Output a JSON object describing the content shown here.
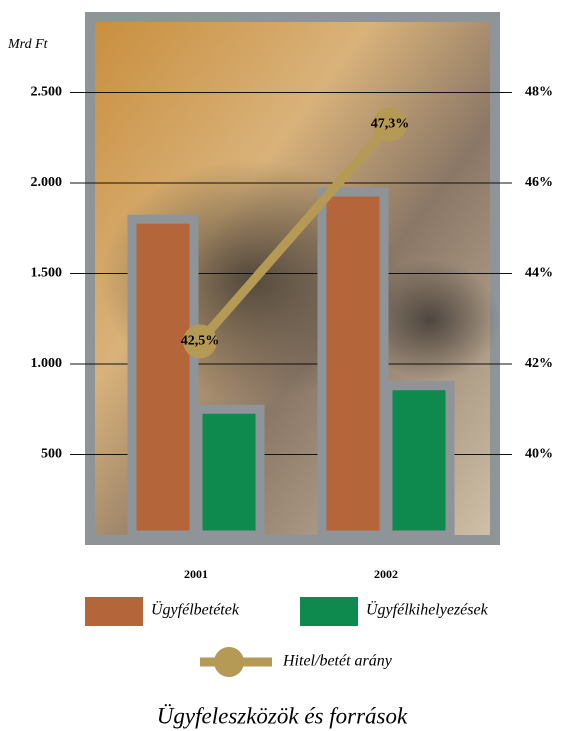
{
  "chart_data": {
    "type": "bar",
    "title": "Ügyfeleszközök és források",
    "y_label": "Mrd Ft",
    "categories": [
      "2001",
      "2002"
    ],
    "series": [
      {
        "name": "Ügyfélbetétek",
        "color": "#b5653a",
        "type": "bar",
        "values": [
          1800,
          1950
        ]
      },
      {
        "name": "Ügyfélkihelyezések",
        "color": "#0e8a4e",
        "type": "bar",
        "values": [
          750,
          880
        ]
      },
      {
        "name": "Hitel/betét arány",
        "color": "#b59a55",
        "type": "line",
        "axis": "y2",
        "values": [
          42.5,
          47.3
        ],
        "value_labels": [
          "42,5%",
          "47,3%"
        ]
      }
    ],
    "ylim": [
      0,
      3000
    ],
    "yticks": [
      500,
      {
        "value": 1000,
        "label": "1.000"
      },
      {
        "value": 1500,
        "label": "1.500"
      },
      {
        "value": 2000,
        "label": "2.000"
      },
      {
        "value": 2500,
        "label": "2.500"
      }
    ],
    "y2lim": [
      38,
      50
    ],
    "y2ticks": [
      {
        "value": 40,
        "label": "40%"
      },
      {
        "value": 42,
        "label": "42%"
      },
      {
        "value": 44,
        "label": "44%"
      },
      {
        "value": 46,
        "label": "46%"
      },
      {
        "value": 48,
        "label": "48%"
      }
    ],
    "grid": true
  }
}
